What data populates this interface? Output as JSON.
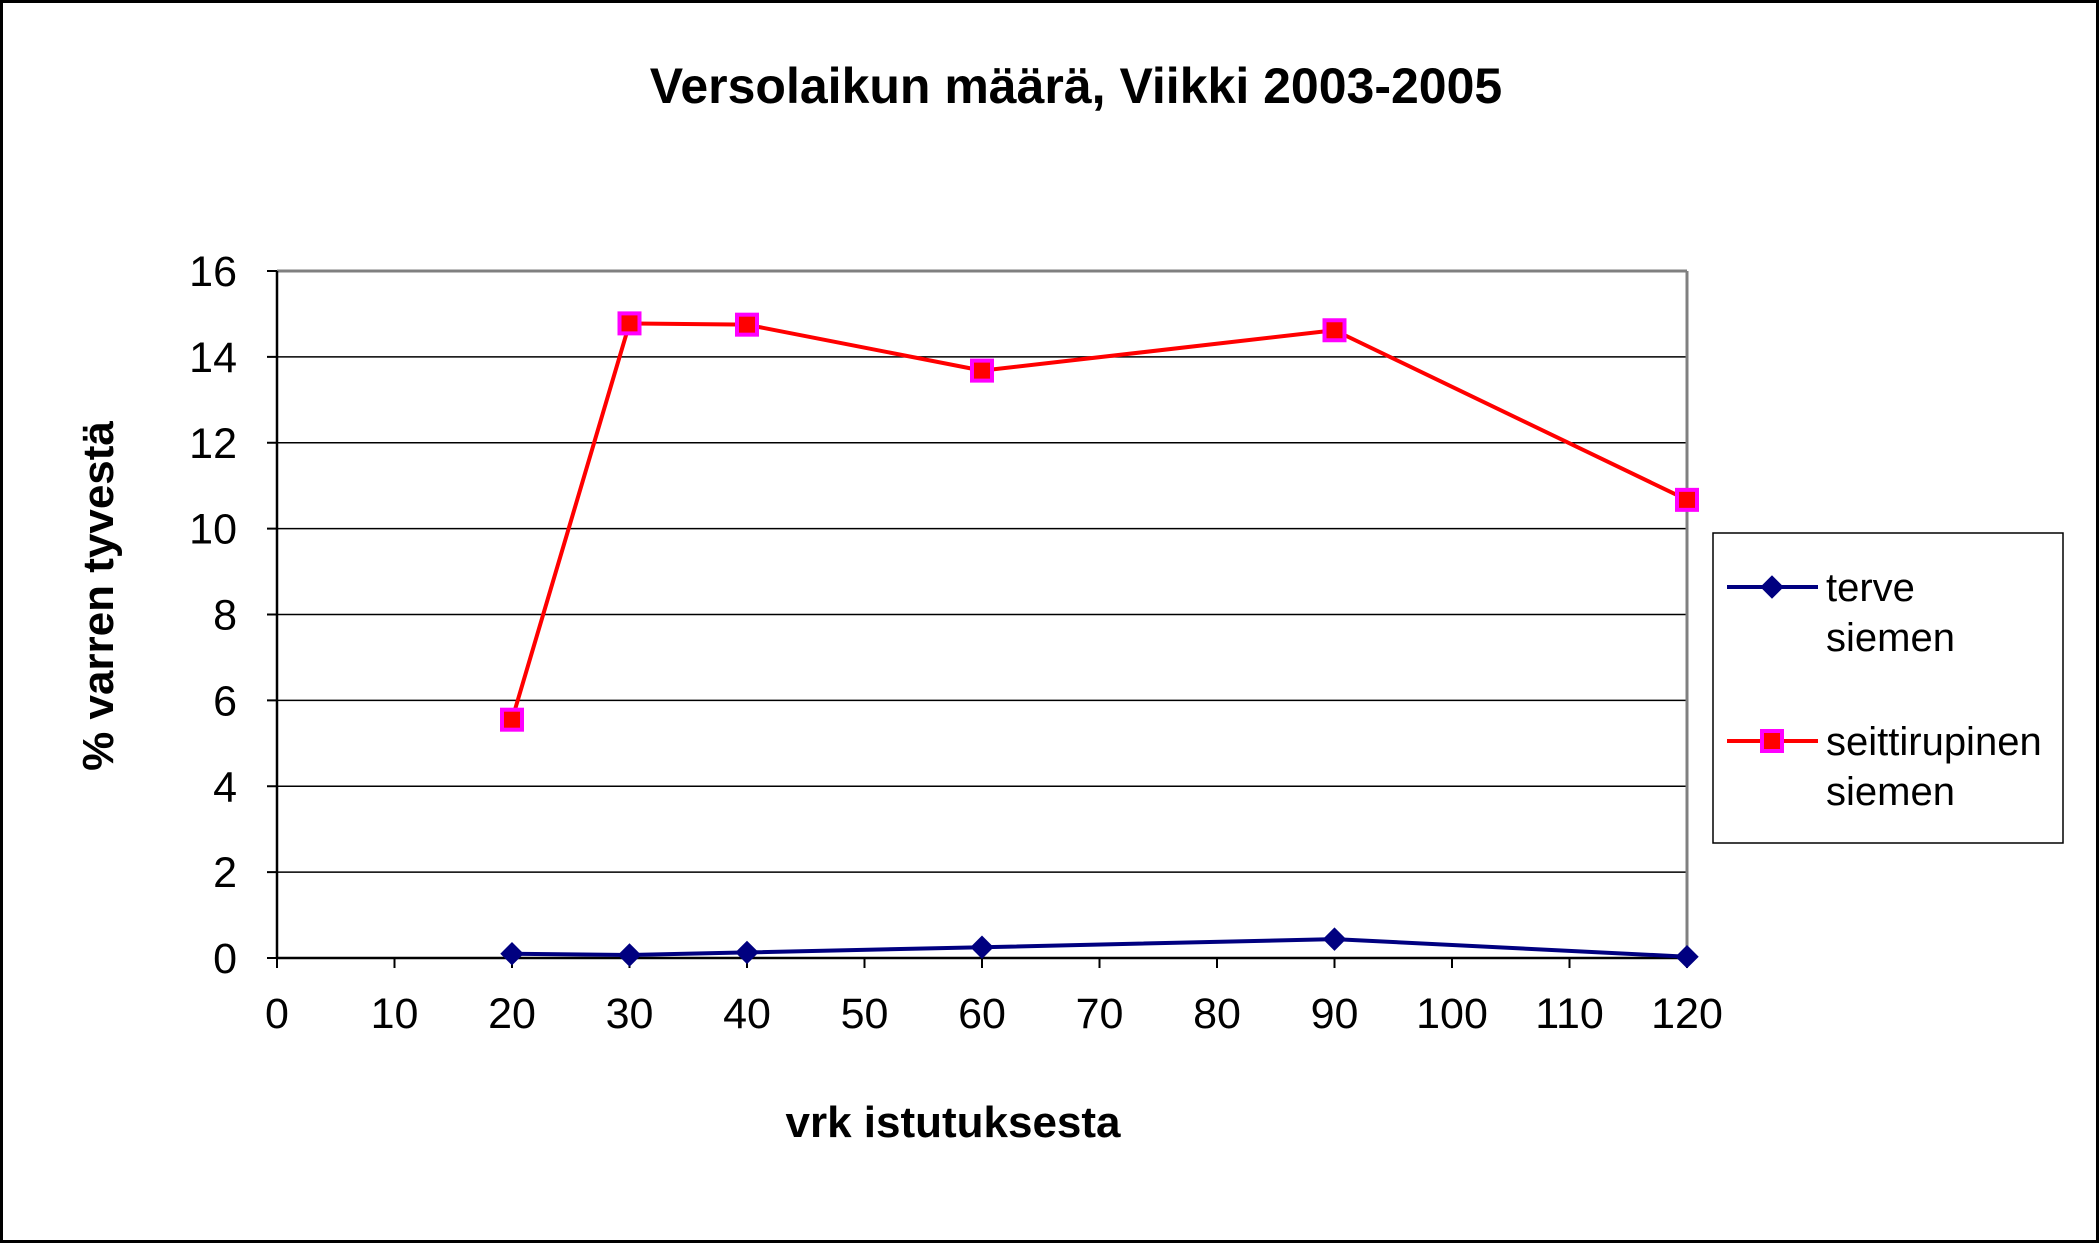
{
  "chart_data": {
    "type": "line",
    "title": "Versolaikun määrä,  Viikki 2003-2005",
    "xlabel": "vrk istutuksesta",
    "ylabel": "% varren tyvestä",
    "xlim": [
      0,
      120
    ],
    "ylim": [
      0,
      16
    ],
    "x_ticks": [
      "0",
      "10",
      "20",
      "30",
      "40",
      "50",
      "60",
      "70",
      "80",
      "90",
      "100",
      "110",
      "120"
    ],
    "y_ticks": [
      "0",
      "2",
      "4",
      "6",
      "8",
      "10",
      "12",
      "14",
      "16"
    ],
    "grid": "horizontal",
    "legend_position": "right",
    "series": [
      {
        "name": "terve siemen",
        "legend_lines": [
          "terve",
          "siemen"
        ],
        "color": "#000080",
        "marker": "diamond",
        "marker_color": "#000080",
        "points": [
          [
            20,
            0.1
          ],
          [
            30,
            0.07
          ],
          [
            40,
            0.13
          ],
          [
            60,
            0.25
          ],
          [
            90,
            0.44
          ],
          [
            120,
            0.03
          ]
        ]
      },
      {
        "name": "seittirupinen siemen",
        "legend_lines": [
          "seittirupinen",
          "siemen"
        ],
        "color": "#ff0000",
        "marker": "square",
        "marker_color": "#ff0000",
        "marker_edge": "#ff00ff",
        "points": [
          [
            20,
            5.55
          ],
          [
            30,
            14.78
          ],
          [
            40,
            14.75
          ],
          [
            60,
            13.68
          ],
          [
            90,
            14.62
          ],
          [
            120,
            10.67
          ]
        ]
      }
    ]
  }
}
